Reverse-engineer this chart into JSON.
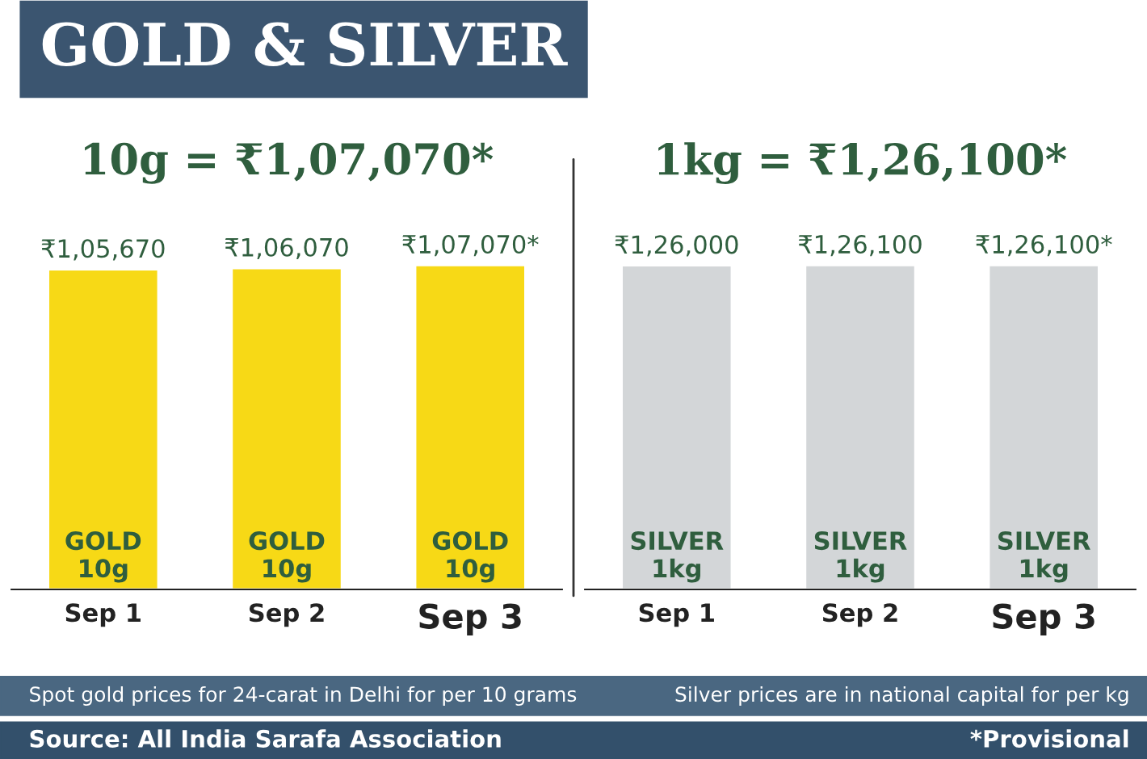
{
  "chart_data": [
    {
      "type": "bar",
      "title": "GOLD & SILVER",
      "subtitle": "10g = ₹1,07,070*",
      "categories": [
        "Sep 1",
        "Sep 2",
        "Sep 3"
      ],
      "values": [
        105670,
        106070,
        107070
      ],
      "color": "#f7d916",
      "value_labels": [
        "₹1,05,670",
        "₹1,06,070",
        "₹1,07,070*"
      ],
      "tick_labels": "x",
      "annotations": [
        "GOLD\n10g",
        "GOLD\n10g",
        "GOLD\n10g",
        "Spot gold prices for 24-carat in Delhi for per 10 grams",
        "Source: All India Sarafa Association"
      ]
    },
    {
      "type": "bar",
      "subtitle": "1kg = ₹1,26,100*",
      "categories": [
        "Sep 1",
        "Sep 2",
        "Sep 3"
      ],
      "values": [
        126000,
        126100,
        126100
      ],
      "color": "#d3d6d8",
      "value_labels": [
        "₹1,26,000",
        "₹1,26,100",
        "₹1,26,100*"
      ],
      "tick_labels": "x",
      "annotations": [
        "SILVER\n1kg",
        "SILVER\n1kg",
        "SILVER\n1kg",
        "Silver prices are in national capital for per kg",
        "*Provisional"
      ]
    }
  ]
}
